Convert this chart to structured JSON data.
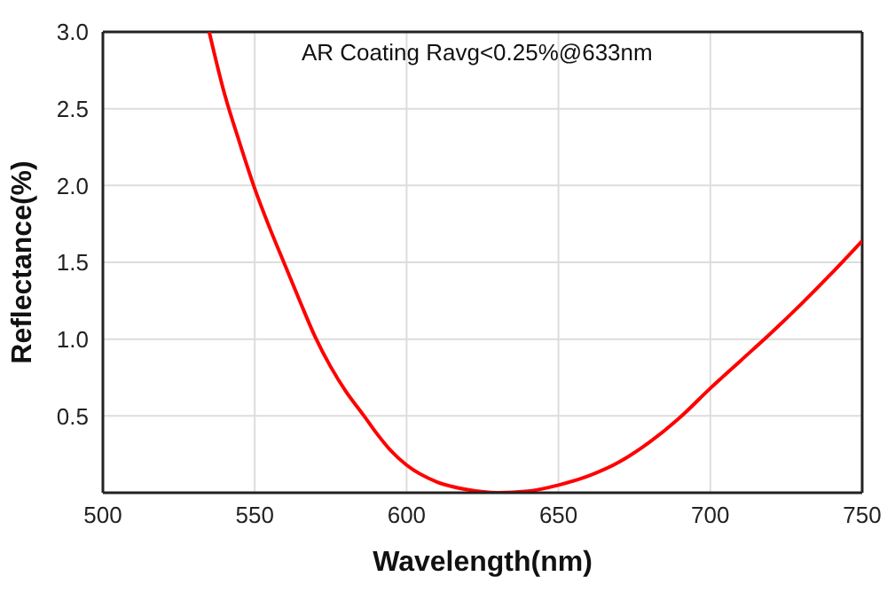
{
  "chart_data": {
    "type": "line",
    "xlabel": "Wavelength(nm)",
    "ylabel": "Reflectance(%)",
    "annotations": [
      "AR Coating Ravg<0.25%@633nm"
    ],
    "xlim": [
      500,
      750
    ],
    "xticks": [
      500,
      550,
      600,
      650,
      700,
      750
    ],
    "ylim": [
      0,
      3
    ],
    "yticks": [
      {
        "value": 0.5,
        "label": "0.5"
      },
      {
        "value": 1,
        "label": "1.0"
      },
      {
        "value": 1.5,
        "label": "1.5"
      },
      {
        "value": 2,
        "label": "2.0"
      },
      {
        "value": 2.5,
        "label": "2.5"
      },
      {
        "value": 3,
        "label": "3.0"
      }
    ],
    "grid": true,
    "marker": "none",
    "line_style": "solid",
    "x": [
      535,
      540,
      545,
      550,
      555,
      560,
      565,
      570,
      575,
      580,
      586,
      590,
      595,
      600,
      610,
      620,
      630,
      640,
      650,
      660,
      670,
      680,
      690,
      700,
      710,
      720,
      730,
      740,
      750
    ],
    "series": [
      {
        "color": "#ff0000",
        "values": [
          3.0,
          2.6,
          2.28,
          1.98,
          1.72,
          1.48,
          1.24,
          1.01,
          0.82,
          0.66,
          0.5,
          0.39,
          0.27,
          0.18,
          0.07,
          0.02,
          0,
          0.01,
          0.05,
          0.11,
          0.2,
          0.33,
          0.49,
          0.68,
          0.86,
          1.04,
          1.23,
          1.43,
          1.64
        ]
      }
    ]
  }
}
